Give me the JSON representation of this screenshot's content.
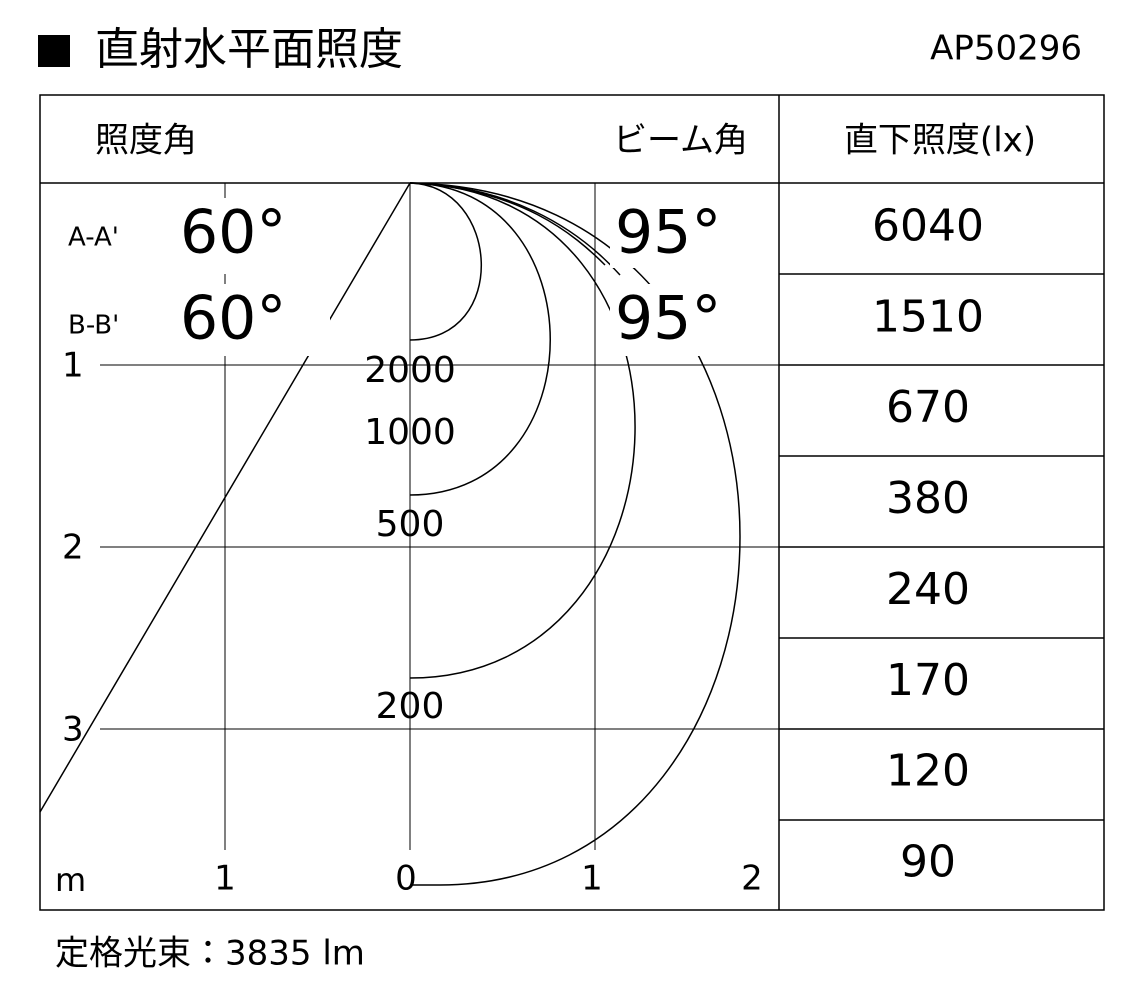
{
  "header": {
    "title": "直射水平面照度",
    "model": "AP50296"
  },
  "table": {
    "headers": [
      "照度角",
      "ビーム角",
      "直下照度(lx)"
    ],
    "rows": [
      {
        "label": "A-A'",
        "angle": "60°",
        "beam": "95°"
      },
      {
        "label": "B-B'",
        "angle": "60°",
        "beam": "95°"
      }
    ]
  },
  "illuminance": [
    6040,
    1510,
    670,
    380,
    240,
    170,
    120,
    90
  ],
  "axis": {
    "unit": "m",
    "depth_ticks": [
      "1",
      "2",
      "3"
    ],
    "width_ticks": [
      "1",
      "0",
      "1",
      "2"
    ]
  },
  "contours": [
    "2000",
    "1000",
    "500",
    "200"
  ],
  "footer": "定格光束：3835 lm"
}
